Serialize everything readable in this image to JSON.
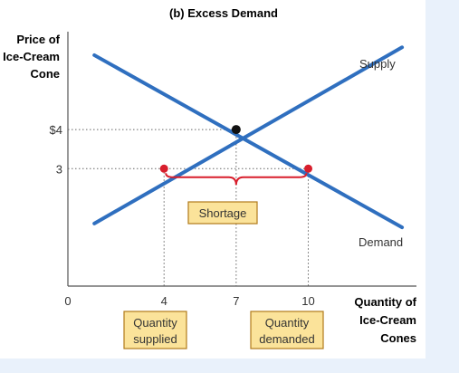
{
  "chart_data": {
    "type": "line",
    "title": "(b) Excess Demand",
    "ylabel": [
      "Price of",
      "Ice-Cream",
      "Cone"
    ],
    "xlabel": [
      "Quantity of",
      "Ice-Cream",
      "Cones"
    ],
    "xlim": [
      0,
      14.5
    ],
    "ylim": [
      0,
      6.5
    ],
    "x_ticks": [
      {
        "value": 0,
        "label": "0"
      },
      {
        "value": 4,
        "label": "4"
      },
      {
        "value": 7,
        "label": "7"
      },
      {
        "value": 10,
        "label": "10"
      }
    ],
    "y_ticks": [
      {
        "value": 4,
        "label": "$4"
      },
      {
        "value": 3,
        "label": "3"
      }
    ],
    "series": [
      {
        "name": "Supply",
        "color": "#2f6fbf",
        "points": [
          [
            1.1,
            1.6
          ],
          [
            13.9,
            6.1
          ]
        ]
      },
      {
        "name": "Demand",
        "color": "#2f6fbf",
        "points": [
          [
            1.1,
            5.9
          ],
          [
            13.9,
            1.5
          ]
        ]
      }
    ],
    "points": [
      {
        "name": "equilibrium",
        "x": 7,
        "y": 4,
        "color": "#111111"
      },
      {
        "name": "quantity-supplied-point",
        "x": 4,
        "y": 3,
        "color": "#d81e2c"
      },
      {
        "name": "quantity-demanded-point",
        "x": 10,
        "y": 3,
        "color": "#d81e2c"
      }
    ],
    "annotations": {
      "shortage": "Shortage",
      "quantity_supplied": [
        "Quantity",
        "supplied"
      ],
      "quantity_demanded": [
        "Quantity",
        "demanded"
      ]
    },
    "colors": {
      "curve": "#2f6fbf",
      "brace": "#d81e2c",
      "box_fill": "#fbe39a",
      "box_stroke": "#b07a1a"
    },
    "grid": false
  }
}
